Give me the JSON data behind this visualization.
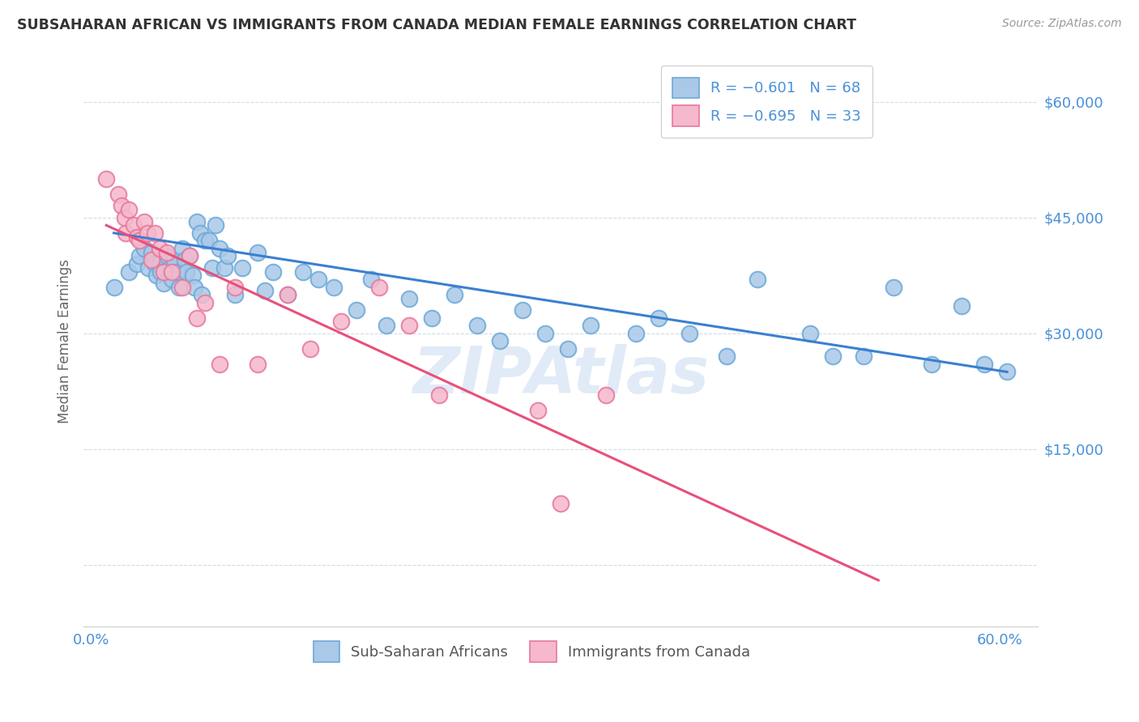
{
  "title": "SUBSAHARAN AFRICAN VS IMMIGRANTS FROM CANADA MEDIAN FEMALE EARNINGS CORRELATION CHART",
  "source": "Source: ZipAtlas.com",
  "ylabel": "Median Female Earnings",
  "watermark": "ZIPAtlas",
  "legend_blue_r": "-0.601",
  "legend_blue_n": "68",
  "legend_pink_r": "-0.695",
  "legend_pink_n": "33",
  "yticks": [
    0,
    15000,
    30000,
    45000,
    60000
  ],
  "ytick_labels": [
    "",
    "$15,000",
    "$30,000",
    "$45,000",
    "$60,000"
  ],
  "xlim": [
    -0.005,
    0.625
  ],
  "ylim": [
    -8000,
    66000
  ],
  "blue_color": "#aac8e8",
  "blue_edge": "#6aaad8",
  "pink_color": "#f5b8cc",
  "pink_edge": "#e8789a",
  "trend_blue": "#3a80d0",
  "trend_pink": "#e8507a",
  "axis_color": "#4a90d9",
  "grid_color": "#d0dce8",
  "blue_x": [
    0.015,
    0.025,
    0.03,
    0.032,
    0.035,
    0.038,
    0.04,
    0.042,
    0.043,
    0.045,
    0.046,
    0.048,
    0.05,
    0.052,
    0.053,
    0.055,
    0.057,
    0.058,
    0.06,
    0.062,
    0.063,
    0.065,
    0.067,
    0.068,
    0.07,
    0.072,
    0.073,
    0.075,
    0.078,
    0.08,
    0.082,
    0.085,
    0.088,
    0.09,
    0.095,
    0.1,
    0.11,
    0.115,
    0.12,
    0.13,
    0.14,
    0.15,
    0.16,
    0.175,
    0.185,
    0.195,
    0.21,
    0.225,
    0.24,
    0.255,
    0.27,
    0.285,
    0.3,
    0.315,
    0.33,
    0.36,
    0.375,
    0.395,
    0.42,
    0.44,
    0.475,
    0.49,
    0.51,
    0.53,
    0.555,
    0.575,
    0.59,
    0.605
  ],
  "blue_y": [
    36000,
    38000,
    39000,
    40000,
    41000,
    38500,
    40500,
    39000,
    37500,
    39000,
    38000,
    36500,
    40000,
    38500,
    37000,
    39500,
    38000,
    36000,
    41000,
    39500,
    38000,
    40000,
    37500,
    36000,
    44500,
    43000,
    35000,
    42000,
    42000,
    38500,
    44000,
    41000,
    38500,
    40000,
    35000,
    38500,
    40500,
    35500,
    38000,
    35000,
    38000,
    37000,
    36000,
    33000,
    37000,
    31000,
    34500,
    32000,
    35000,
    31000,
    29000,
    33000,
    30000,
    28000,
    31000,
    30000,
    32000,
    30000,
    27000,
    37000,
    30000,
    27000,
    27000,
    36000,
    26000,
    33500,
    26000,
    25000
  ],
  "pink_x": [
    0.01,
    0.018,
    0.02,
    0.022,
    0.023,
    0.025,
    0.028,
    0.03,
    0.032,
    0.035,
    0.037,
    0.04,
    0.042,
    0.045,
    0.048,
    0.05,
    0.053,
    0.06,
    0.065,
    0.07,
    0.075,
    0.085,
    0.095,
    0.11,
    0.13,
    0.145,
    0.165,
    0.19,
    0.21,
    0.23,
    0.295,
    0.31,
    0.34
  ],
  "pink_y": [
    50000,
    48000,
    46500,
    45000,
    43000,
    46000,
    44000,
    42500,
    42000,
    44500,
    43000,
    39500,
    43000,
    41000,
    38000,
    40500,
    38000,
    36000,
    40000,
    32000,
    34000,
    26000,
    36000,
    26000,
    35000,
    28000,
    31500,
    36000,
    31000,
    22000,
    20000,
    8000,
    22000
  ],
  "blue_trend_x": [
    0.015,
    0.605
  ],
  "blue_trend_y": [
    43000,
    25000
  ],
  "pink_trend_x": [
    0.01,
    0.52
  ],
  "pink_trend_y": [
    44000,
    -2000
  ]
}
